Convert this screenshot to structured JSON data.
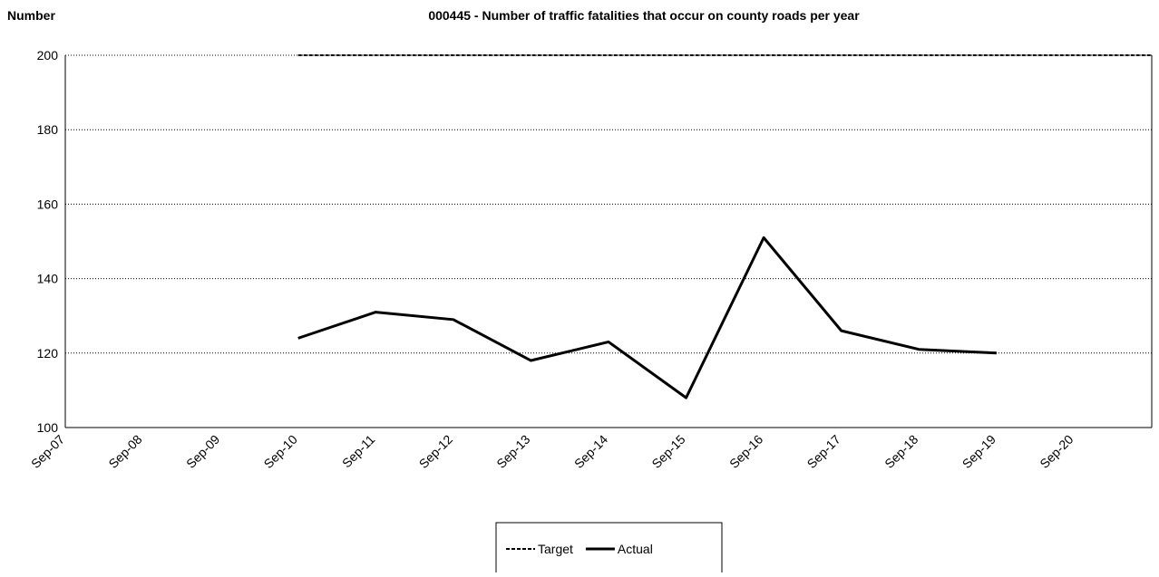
{
  "chart_data": {
    "type": "line",
    "title": "000445 - Number of traffic fatalities that occur on county roads per year",
    "y_label": "Number",
    "categories": [
      "Sep-07",
      "Sep-08",
      "Sep-09",
      "Sep-10",
      "Sep-11",
      "Sep-12",
      "Sep-13",
      "Sep-14",
      "Sep-15",
      "Sep-16",
      "Sep-17",
      "Sep-18",
      "Sep-19",
      "Sep-20",
      null
    ],
    "series": [
      {
        "name": "Target",
        "color": "#000000",
        "style": "dashed",
        "values": [
          null,
          null,
          null,
          200,
          200,
          200,
          200,
          200,
          200,
          200,
          200,
          200,
          200,
          200,
          200
        ]
      },
      {
        "name": "Actual",
        "color": "#000000",
        "style": "solid",
        "values": [
          null,
          null,
          null,
          124,
          131,
          129,
          118,
          123,
          108,
          151,
          126,
          121,
          120,
          null,
          null
        ]
      }
    ],
    "ylim": [
      100,
      200
    ],
    "yticks": [
      100,
      120,
      140,
      160,
      180,
      200
    ],
    "grid": true,
    "legend": "bottom"
  }
}
